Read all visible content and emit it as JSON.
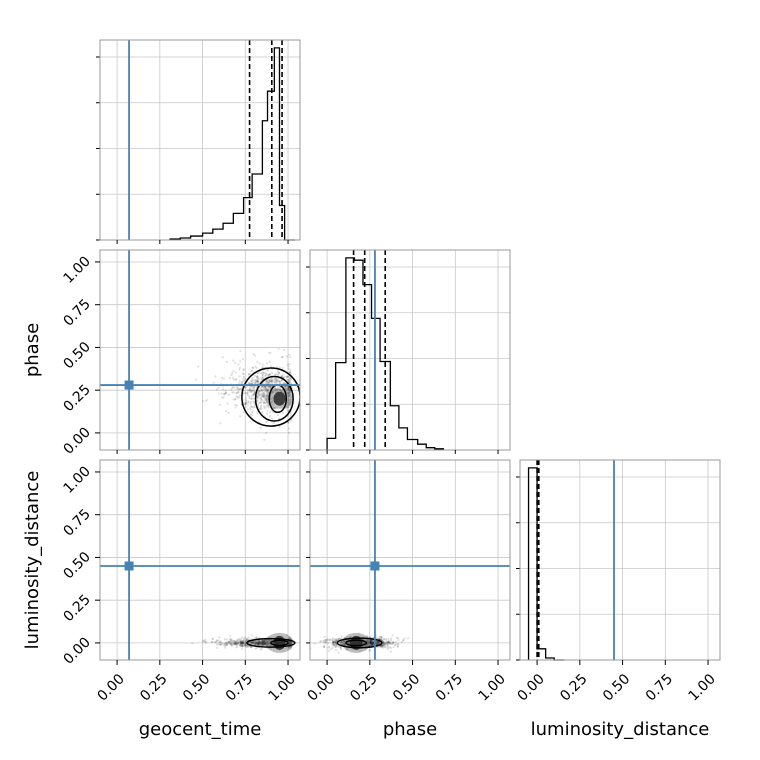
{
  "chart_data": {
    "type": "corner",
    "parameters": [
      "geocent_time",
      "phase",
      "luminosity_distance"
    ],
    "axis_ticks": [
      0.0,
      0.25,
      0.5,
      0.75,
      1.0
    ],
    "axis_tick_labels": [
      "0.00",
      "0.25",
      "0.50",
      "0.75",
      "1.00"
    ],
    "axis_range": [
      -0.1,
      1.07
    ],
    "grid": true,
    "truth_color": "#4682b4",
    "truths": {
      "geocent_time": 0.07,
      "phase": 0.28,
      "luminosity_distance": 0.45
    },
    "histograms": [
      {
        "parameter": "geocent_time",
        "bin_edges": [
          0.31,
          0.37,
          0.43,
          0.5,
          0.56,
          0.62,
          0.68,
          0.74,
          0.79,
          0.85,
          0.88,
          0.92,
          0.95,
          0.98,
          1.04
        ],
        "counts": [
          1,
          2,
          4,
          7,
          11,
          17,
          27,
          43,
          67,
          121,
          151,
          195,
          35,
          0
        ],
        "quantiles": [
          0.775,
          0.905,
          0.965
        ]
      },
      {
        "parameter": "phase",
        "bin_edges": [
          0.0,
          0.05,
          0.11,
          0.16,
          0.21,
          0.26,
          0.31,
          0.37,
          0.42,
          0.47,
          0.53,
          0.58,
          0.63,
          0.68
        ],
        "counts": [
          10,
          75,
          165,
          163,
          142,
          113,
          76,
          38,
          19,
          9,
          5,
          2,
          1
        ],
        "quantiles": [
          0.155,
          0.22,
          0.34
        ]
      },
      {
        "parameter": "luminosity_distance",
        "bin_edges": [
          -0.05,
          0.0,
          0.05,
          0.1,
          0.16
        ],
        "counts": [
          189,
          11,
          2,
          0
        ],
        "quantiles": [
          0.0,
          0.005,
          0.01
        ]
      }
    ],
    "joint_panels": [
      {
        "x": "geocent_time",
        "y": "phase",
        "scatter_center": [
          0.88,
          0.25
        ],
        "scatter_spread": [
          0.12,
          0.09
        ],
        "density_peak": [
          0.95,
          0.2
        ],
        "contours": [
          {
            "level": "outer",
            "center": [
              0.9,
              0.21
            ],
            "size": [
              0.17,
              0.17
            ]
          },
          {
            "level": "mid",
            "center": [
              0.92,
              0.2
            ],
            "size": [
              0.11,
              0.13
            ]
          },
          {
            "level": "inner",
            "center": [
              0.94,
              0.2
            ],
            "size": [
              0.05,
              0.08
            ]
          }
        ]
      },
      {
        "x": "geocent_time",
        "y": "luminosity_distance",
        "scatter_center": [
          0.9,
          0.0
        ],
        "scatter_spread": [
          0.15,
          0.015
        ],
        "density_peak": [
          0.95,
          0.0
        ],
        "contours": [
          {
            "level": "outer",
            "center": [
              0.9,
              0.0
            ],
            "size": [
              0.14,
              0.025
            ]
          },
          {
            "level": "inner",
            "center": [
              0.95,
              0.0
            ],
            "size": [
              0.05,
              0.015
            ]
          }
        ]
      },
      {
        "x": "phase",
        "y": "luminosity_distance",
        "scatter_center": [
          0.2,
          0.0
        ],
        "scatter_spread": [
          0.09,
          0.02
        ],
        "density_peak": [
          0.17,
          0.0
        ],
        "contours": [
          {
            "level": "outer",
            "center": [
              0.19,
              0.0
            ],
            "size": [
              0.13,
              0.028
            ]
          },
          {
            "level": "inner",
            "center": [
              0.17,
              0.0
            ],
            "size": [
              0.06,
              0.016
            ]
          }
        ]
      }
    ]
  }
}
